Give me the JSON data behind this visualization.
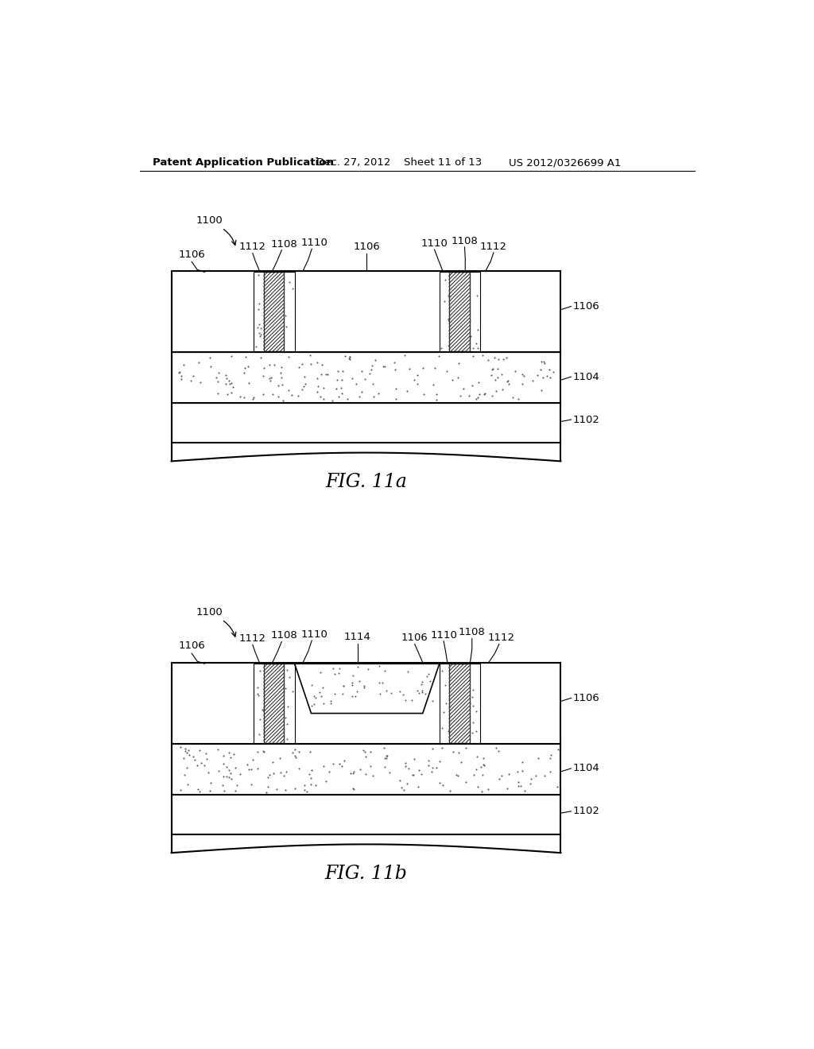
{
  "bg_color": "#ffffff",
  "line_color": "#000000",
  "header_text": "Patent Application Publication",
  "header_date": "Dec. 27, 2012",
  "header_sheet": "Sheet 11 of 13",
  "header_patent": "US 2012/0326699 A1",
  "fig_a_label": "FIG. 11a",
  "fig_b_label": "FIG. 11b",
  "dot_color": "#555555",
  "hatch_color": "#444444"
}
